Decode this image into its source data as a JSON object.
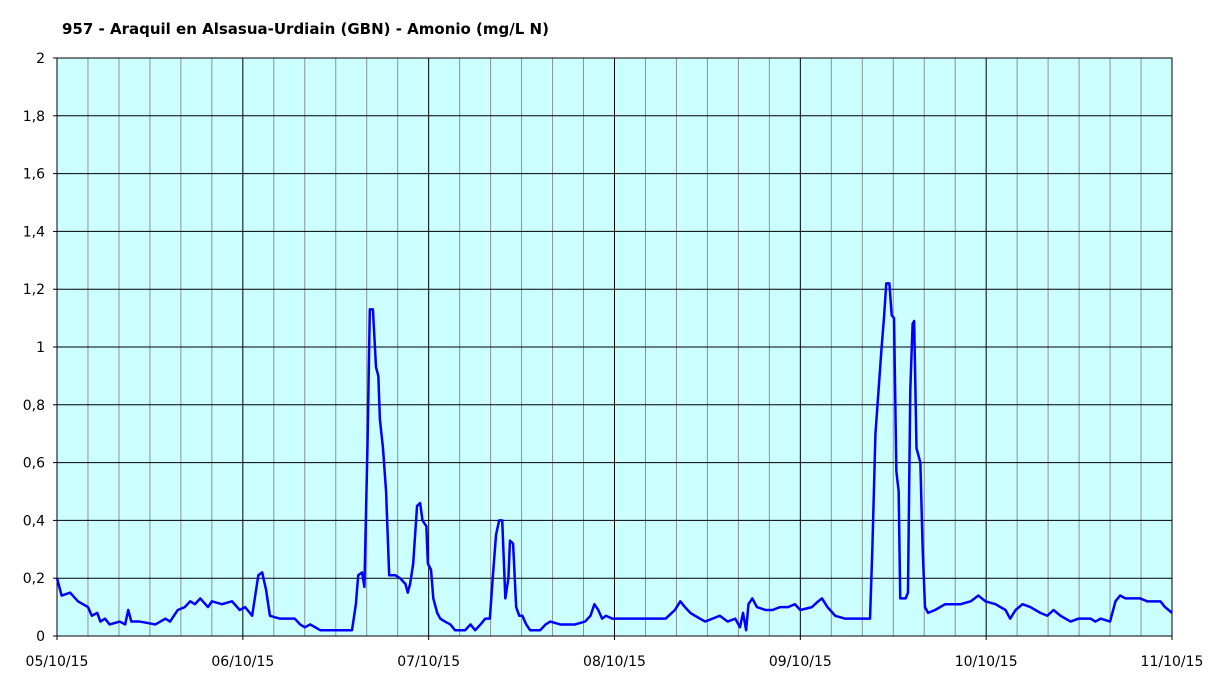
{
  "chart_data": {
    "type": "line",
    "title": "957 - Araquil en Alsasua-Urdiain (GBN) - Amonio (mg/L N)",
    "xlim": [
      0,
      144
    ],
    "xticks": [
      {
        "value": 0,
        "label": "05/10/15"
      },
      {
        "value": 24,
        "label": "06/10/15"
      },
      {
        "value": 48,
        "label": "07/10/15"
      },
      {
        "value": 72,
        "label": "08/10/15"
      },
      {
        "value": 96,
        "label": "09/10/15"
      },
      {
        "value": 120,
        "label": "10/10/15"
      },
      {
        "value": 144,
        "label": "11/10/15"
      }
    ],
    "xminor_ticks": [
      4,
      8,
      12,
      16,
      20,
      28,
      32,
      36,
      40,
      44,
      52,
      56,
      60,
      64,
      68,
      76,
      80,
      84,
      88,
      92,
      100,
      104,
      108,
      112,
      116,
      124,
      128,
      132,
      136,
      140
    ],
    "ylim": [
      0,
      2
    ],
    "yticks": [
      0,
      {
        "value": 0.2,
        "label": "0,2"
      },
      {
        "value": 0.4,
        "label": "0,4"
      },
      {
        "value": 0.6,
        "label": "0,6"
      },
      {
        "value": 0.8,
        "label": "0,8"
      },
      1,
      {
        "value": 1.2,
        "label": "1,2"
      },
      {
        "value": 1.4,
        "label": "1,4"
      },
      {
        "value": 1.6,
        "label": "1,6"
      },
      {
        "value": 1.8,
        "label": "1,8"
      },
      2
    ],
    "grid": true,
    "x": [
      0,
      0.6,
      1.7,
      2.7,
      4.0,
      4.5,
      5.2,
      5.6,
      6.2,
      6.8,
      8.1,
      8.8,
      9.2,
      9.6,
      10.7,
      12.7,
      14.0,
      14.6,
      15.6,
      16.5,
      17.2,
      17.8,
      18.5,
      19.5,
      20.0,
      21.3,
      22.6,
      23.6,
      24.3,
      25.2,
      26.0,
      26.5,
      27.0,
      27.5,
      28.8,
      30.7,
      31.4,
      32.0,
      32.7,
      34.0,
      38.1,
      38.6,
      38.9,
      39.4,
      39.7,
      40.1,
      40.4,
      40.8,
      41.2,
      41.5,
      41.7,
      42.1,
      42.5,
      42.9,
      43.7,
      44.3,
      45.0,
      45.3,
      45.6,
      46.0,
      46.5,
      46.9,
      47.2,
      47.7,
      47.9,
      48.3,
      48.6,
      49.1,
      49.5,
      50.1,
      50.8,
      51.4,
      52.7,
      53.4,
      54.0,
      54.7,
      55.3,
      55.9,
      56.3,
      56.7,
      57.1,
      57.5,
      57.9,
      58.3,
      58.5,
      58.9,
      59.3,
      59.7,
      60.1,
      60.6,
      61.1,
      62.4,
      63.1,
      63.7,
      65.0,
      66.9,
      68.2,
      68.9,
      69.4,
      69.9,
      70.4,
      70.9,
      71.7,
      72.7,
      75.3,
      78.6,
      79.8,
      80.5,
      81.1,
      81.8,
      82.4,
      83.7,
      85.6,
      86.6,
      87.6,
      88.2,
      88.6,
      89.0,
      89.3,
      89.8,
      90.4,
      91.5,
      92.4,
      93.4,
      94.4,
      95.3,
      96.0,
      97.5,
      98.3,
      98.8,
      99.5,
      100.5,
      101.8,
      105.0,
      105.3,
      105.7,
      106.1,
      106.5,
      106.8,
      107.1,
      107.5,
      107.8,
      108.1,
      108.4,
      108.7,
      108.9,
      109.6,
      109.9,
      110.2,
      110.5,
      110.7,
      111.0,
      111.5,
      111.8,
      112.1,
      112.5,
      113.4,
      114.7,
      116.7,
      118.0,
      119.0,
      119.9,
      121.2,
      122.5,
      123.1,
      123.8,
      124.7,
      125.7,
      127.0,
      127.9,
      128.7,
      129.6,
      130.9,
      131.9,
      133.5,
      134.1,
      134.8,
      136.0,
      136.7,
      137.3,
      138.0,
      139.9,
      140.8,
      142.5,
      143.1,
      144
    ],
    "series": [
      {
        "color": "#0000ff",
        "values": [
          0.2,
          0.14,
          0.15,
          0.12,
          0.1,
          0.07,
          0.08,
          0.05,
          0.06,
          0.04,
          0.05,
          0.04,
          0.09,
          0.05,
          0.05,
          0.04,
          0.06,
          0.05,
          0.09,
          0.1,
          0.12,
          0.11,
          0.13,
          0.1,
          0.12,
          0.11,
          0.12,
          0.09,
          0.1,
          0.07,
          0.21,
          0.22,
          0.16,
          0.07,
          0.06,
          0.06,
          0.04,
          0.03,
          0.04,
          0.02,
          0.02,
          0.11,
          0.21,
          0.22,
          0.17,
          0.66,
          1.13,
          1.13,
          0.93,
          0.9,
          0.75,
          0.65,
          0.5,
          0.21,
          0.21,
          0.2,
          0.18,
          0.15,
          0.18,
          0.25,
          0.45,
          0.46,
          0.4,
          0.38,
          0.25,
          0.23,
          0.13,
          0.08,
          0.06,
          0.05,
          0.04,
          0.02,
          0.02,
          0.04,
          0.02,
          0.04,
          0.06,
          0.06,
          0.21,
          0.35,
          0.4,
          0.4,
          0.13,
          0.2,
          0.33,
          0.32,
          0.1,
          0.07,
          0.07,
          0.04,
          0.02,
          0.02,
          0.04,
          0.05,
          0.04,
          0.04,
          0.05,
          0.07,
          0.11,
          0.09,
          0.06,
          0.07,
          0.06,
          0.06,
          0.06,
          0.06,
          0.09,
          0.12,
          0.1,
          0.08,
          0.07,
          0.05,
          0.07,
          0.05,
          0.06,
          0.03,
          0.08,
          0.02,
          0.11,
          0.13,
          0.1,
          0.09,
          0.09,
          0.1,
          0.1,
          0.11,
          0.09,
          0.1,
          0.12,
          0.13,
          0.1,
          0.07,
          0.06,
          0.06,
          0.3,
          0.7,
          0.85,
          1.0,
          1.1,
          1.22,
          1.22,
          1.11,
          1.1,
          0.57,
          0.5,
          0.13,
          0.13,
          0.15,
          0.85,
          1.08,
          1.09,
          0.65,
          0.6,
          0.3,
          0.1,
          0.08,
          0.09,
          0.11,
          0.11,
          0.12,
          0.14,
          0.12,
          0.11,
          0.09,
          0.06,
          0.09,
          0.11,
          0.1,
          0.08,
          0.07,
          0.09,
          0.07,
          0.05,
          0.06,
          0.06,
          0.05,
          0.06,
          0.05,
          0.12,
          0.14,
          0.13,
          0.13,
          0.12,
          0.12,
          0.1,
          0.08
        ]
      }
    ]
  }
}
